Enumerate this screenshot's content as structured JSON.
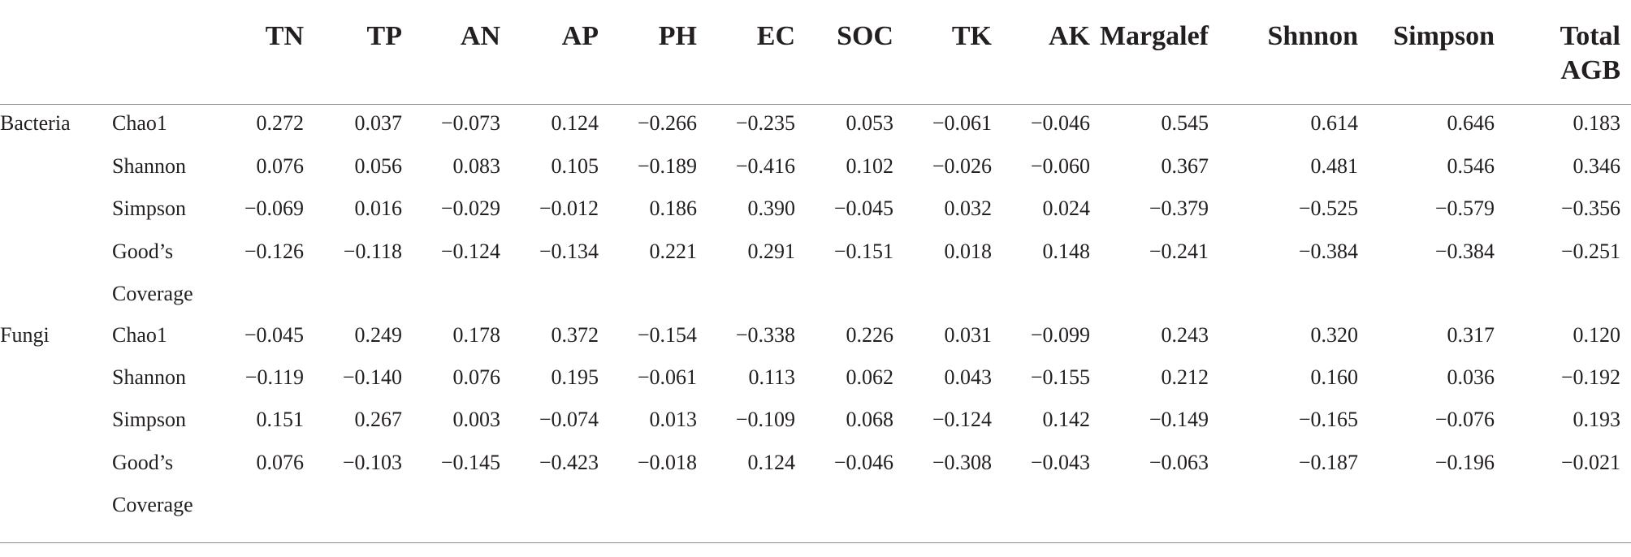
{
  "columns": [
    "TN",
    "TP",
    "AN",
    "AP",
    "PH",
    "EC",
    "SOC",
    "TK",
    "AK",
    "Margalef",
    "Shnnon",
    "Simpson",
    "Total AGB"
  ],
  "groups": [
    {
      "name": "Bacteria",
      "rows": [
        {
          "label": "Chao1",
          "values": [
            "0.272",
            "0.037",
            "−0.073",
            "0.124",
            "−0.266",
            "−0.235",
            "0.053",
            "−0.061",
            "−0.046",
            "0.545",
            "0.614",
            "0.646",
            "0.183"
          ]
        },
        {
          "label": "Shannon",
          "values": [
            "0.076",
            "0.056",
            "0.083",
            "0.105",
            "−0.189",
            "−0.416",
            "0.102",
            "−0.026",
            "−0.060",
            "0.367",
            "0.481",
            "0.546",
            "0.346"
          ]
        },
        {
          "label": "Simpson",
          "values": [
            "−0.069",
            "0.016",
            "−0.029",
            "−0.012",
            "0.186",
            "0.390",
            "−0.045",
            "0.032",
            "0.024",
            "−0.379",
            "−0.525",
            "−0.579",
            "−0.356"
          ]
        },
        {
          "label": "Good’s Coverage",
          "values": [
            "−0.126",
            "−0.118",
            "−0.124",
            "−0.134",
            "0.221",
            "0.291",
            "−0.151",
            "0.018",
            "0.148",
            "−0.241",
            "−0.384",
            "−0.384",
            "−0.251"
          ]
        }
      ]
    },
    {
      "name": "Fungi",
      "rows": [
        {
          "label": "Chao1",
          "values": [
            "−0.045",
            "0.249",
            "0.178",
            "0.372",
            "−0.154",
            "−0.338",
            "0.226",
            "0.031",
            "−0.099",
            "0.243",
            "0.320",
            "0.317",
            "0.120"
          ]
        },
        {
          "label": "Shannon",
          "values": [
            "−0.119",
            "−0.140",
            "0.076",
            "0.195",
            "−0.061",
            "0.113",
            "0.062",
            "0.043",
            "−0.155",
            "0.212",
            "0.160",
            "0.036",
            "−0.192"
          ]
        },
        {
          "label": "Simpson",
          "values": [
            "0.151",
            "0.267",
            "0.003",
            "−0.074",
            "0.013",
            "−0.109",
            "0.068",
            "−0.124",
            "0.142",
            "−0.149",
            "−0.165",
            "−0.076",
            "0.193"
          ]
        },
        {
          "label": "Good’s Coverage",
          "values": [
            "0.076",
            "−0.103",
            "−0.145",
            "−0.423",
            "−0.018",
            "0.124",
            "−0.046",
            "−0.308",
            "−0.043",
            "−0.063",
            "−0.187",
            "−0.196",
            "−0.021"
          ]
        }
      ]
    }
  ]
}
